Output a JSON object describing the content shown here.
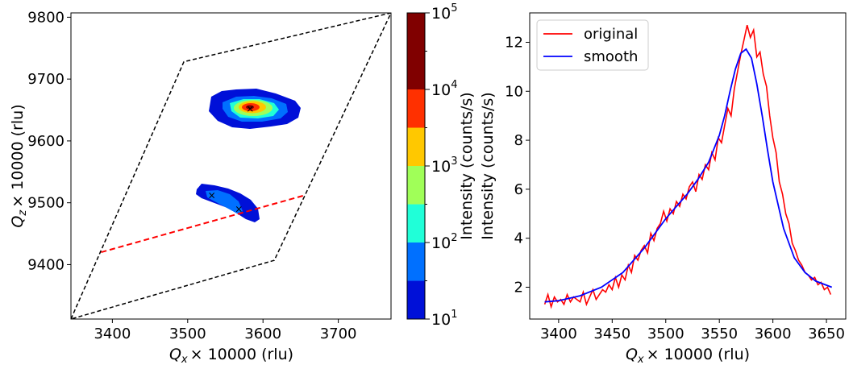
{
  "chart_data": [
    {
      "type": "heatmap",
      "panel": "left",
      "xlabel_var": "Q",
      "xlabel_sub": "x",
      "xlabel_rest": "×  10000 (rlu)",
      "ylabel_var": "Q",
      "ylabel_sub": "z",
      "ylabel_rest": "×  10000 (rlu)",
      "xlim": [
        3345,
        3770
      ],
      "ylim": [
        9312,
        9807
      ],
      "xticks": [
        3400,
        3500,
        3600,
        3700
      ],
      "yticks": [
        9400,
        9500,
        9600,
        9700,
        9800
      ],
      "boundary_quadrilateral": [
        [
          3345,
          9312
        ],
        [
          3495,
          9728
        ],
        [
          3770,
          9807
        ],
        [
          3615,
          9407
        ]
      ],
      "linescan_segment": [
        [
          3385,
          9420
        ],
        [
          3655,
          9512
        ]
      ],
      "peak_markers": [
        [
          3583,
          9652
        ],
        [
          3532,
          9512
        ],
        [
          3568,
          9490
        ]
      ],
      "colorbar": {
        "label": "Intensity (counts/s)",
        "scale": "log",
        "range": [
          10,
          100000
        ],
        "tick_labels": [
          {
            "base": "10",
            "exp": "1",
            "value": 10
          },
          {
            "base": "10",
            "exp": "2",
            "value": 100
          },
          {
            "base": "10",
            "exp": "3",
            "value": 1000
          },
          {
            "base": "10",
            "exp": "4",
            "value": 10000
          },
          {
            "base": "10",
            "exp": "5",
            "value": 100000
          }
        ],
        "levels": [
          {
            "lo": 10,
            "hi": 31.6,
            "color": "#0010d8"
          },
          {
            "lo": 31.6,
            "hi": 100,
            "color": "#0070ff"
          },
          {
            "lo": 100,
            "hi": 316,
            "color": "#20ffd8"
          },
          {
            "lo": 316,
            "hi": 1000,
            "color": "#a0ff58"
          },
          {
            "lo": 1000,
            "hi": 3162,
            "color": "#ffc800"
          },
          {
            "lo": 3162,
            "hi": 10000,
            "color": "#ff3000"
          },
          {
            "lo": 10000,
            "hi": 100000,
            "color": "#800000"
          }
        ]
      }
    },
    {
      "type": "line",
      "panel": "right",
      "xlabel_var": "Q",
      "xlabel_sub": "x",
      "xlabel_rest": "×  10000 (rlu)",
      "ylabel": "Intensity (counts/s)",
      "xlim": [
        3373,
        3668
      ],
      "ylim": [
        0.7,
        13.2
      ],
      "xticks": [
        3400,
        3450,
        3500,
        3550,
        3600,
        3650
      ],
      "yticks": [
        2,
        4,
        6,
        8,
        10,
        12
      ],
      "legend_position": "top-left",
      "series": [
        {
          "name": "original",
          "color": "#ff0000",
          "x": [
            3387,
            3390,
            3393,
            3396,
            3399,
            3402,
            3405,
            3408,
            3411,
            3414,
            3417,
            3420,
            3423,
            3426,
            3429,
            3432,
            3435,
            3438,
            3441,
            3444,
            3447,
            3450,
            3453,
            3456,
            3459,
            3462,
            3465,
            3468,
            3471,
            3474,
            3477,
            3480,
            3483,
            3486,
            3489,
            3492,
            3495,
            3498,
            3501,
            3504,
            3507,
            3510,
            3513,
            3516,
            3519,
            3522,
            3525,
            3528,
            3531,
            3534,
            3537,
            3540,
            3543,
            3546,
            3549,
            3552,
            3555,
            3558,
            3561,
            3564,
            3567,
            3570,
            3573,
            3576,
            3579,
            3582,
            3585,
            3588,
            3591,
            3594,
            3597,
            3600,
            3603,
            3606,
            3609,
            3612,
            3615,
            3618,
            3621,
            3624,
            3627,
            3630,
            3633,
            3636,
            3639,
            3642,
            3645,
            3648,
            3651,
            3654
          ],
          "values": [
            1.3,
            1.7,
            1.2,
            1.6,
            1.4,
            1.5,
            1.3,
            1.7,
            1.4,
            1.6,
            1.5,
            1.4,
            1.8,
            1.3,
            1.6,
            1.9,
            1.5,
            1.7,
            1.9,
            1.8,
            2.1,
            1.9,
            2.4,
            2.0,
            2.5,
            2.3,
            2.9,
            2.6,
            3.3,
            3.1,
            3.5,
            3.7,
            3.4,
            4.2,
            3.9,
            4.4,
            4.6,
            5.1,
            4.7,
            5.2,
            5.0,
            5.5,
            5.3,
            5.8,
            5.6,
            6.1,
            6.3,
            5.9,
            6.6,
            6.4,
            7.0,
            6.8,
            7.5,
            7.2,
            8.1,
            7.9,
            8.6,
            9.3,
            9.0,
            10.1,
            10.8,
            11.5,
            12.1,
            12.7,
            12.2,
            12.5,
            11.4,
            11.6,
            10.7,
            10.2,
            9.0,
            8.1,
            7.5,
            6.3,
            5.8,
            5.0,
            4.6,
            3.8,
            3.5,
            3.1,
            2.9,
            2.6,
            2.5,
            2.3,
            2.4,
            2.1,
            2.2,
            1.9,
            2.0,
            1.7
          ]
        },
        {
          "name": "smooth",
          "color": "#0000ff",
          "x": [
            3387,
            3400,
            3420,
            3440,
            3460,
            3480,
            3500,
            3510,
            3520,
            3530,
            3540,
            3550,
            3555,
            3560,
            3565,
            3570,
            3575,
            3580,
            3585,
            3590,
            3595,
            3600,
            3610,
            3620,
            3630,
            3640,
            3655
          ],
          "values": [
            1.4,
            1.45,
            1.65,
            2.0,
            2.6,
            3.6,
            4.8,
            5.3,
            5.8,
            6.4,
            7.1,
            8.2,
            9.0,
            10.0,
            10.9,
            11.55,
            11.72,
            11.35,
            10.3,
            9.0,
            7.6,
            6.3,
            4.4,
            3.2,
            2.6,
            2.25,
            2.0
          ]
        }
      ]
    }
  ]
}
